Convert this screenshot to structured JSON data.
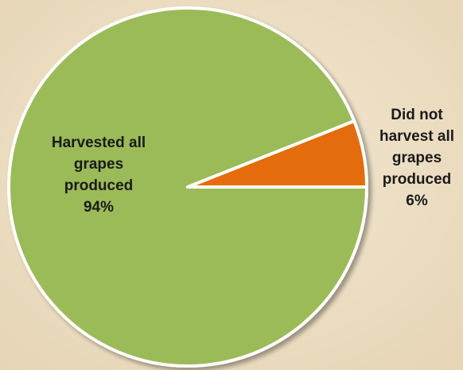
{
  "chart_data": {
    "type": "pie",
    "title": "",
    "slices": [
      {
        "label": "Harvested all grapes produced",
        "value": 94,
        "display": "94%",
        "color": "#9bbb59"
      },
      {
        "label": "Did not harvest all grapes produced",
        "value": 6,
        "display": "6%",
        "color": "#e46c0a"
      }
    ],
    "label_lines": {
      "harvested": "Harvested all\ngrapes\nproduced\n94%",
      "not_harvested": "Did not\nharvest all\ngrapes\nproduced\n6%"
    }
  },
  "colors": {
    "background": "#efe2c8",
    "slice_border": "#ffffff"
  }
}
